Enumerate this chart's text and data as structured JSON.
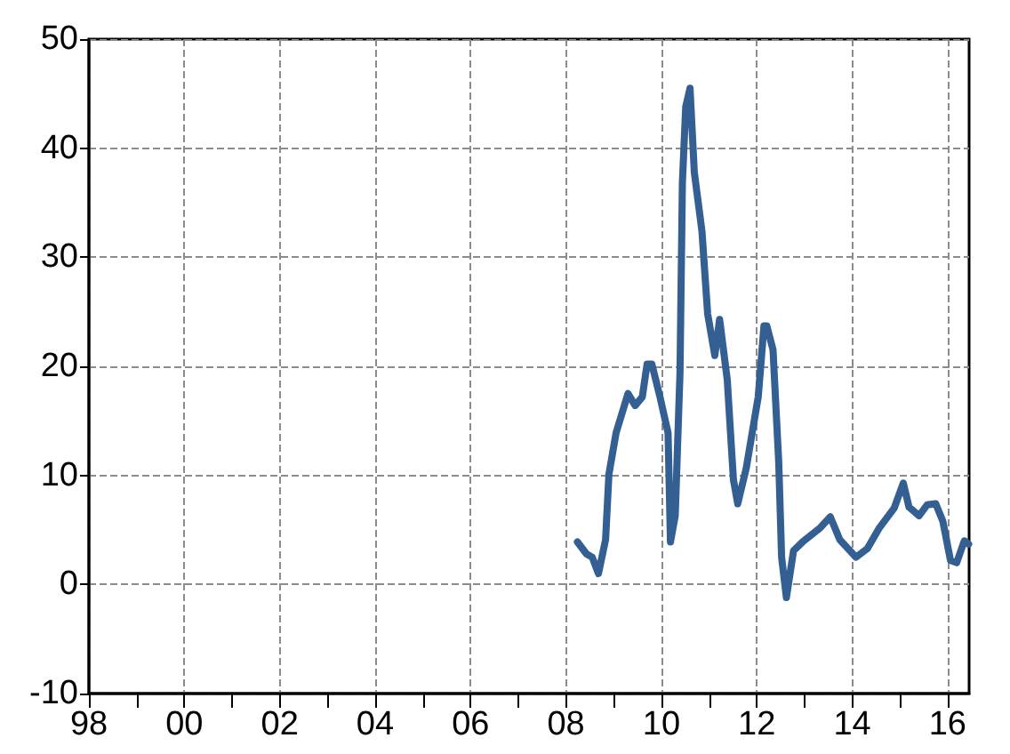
{
  "chart_data": {
    "type": "line",
    "x": [
      2008.24,
      2008.43,
      2008.55,
      2008.68,
      2008.83,
      2008.9,
      2009.05,
      2009.3,
      2009.45,
      2009.6,
      2009.7,
      2009.8,
      2009.97,
      2010.14,
      2010.19,
      2010.29,
      2010.39,
      2010.44,
      2010.51,
      2010.6,
      2010.69,
      2010.85,
      2010.97,
      2011.12,
      2011.22,
      2011.38,
      2011.51,
      2011.6,
      2011.78,
      2012.03,
      2012.15,
      2012.21,
      2012.34,
      2012.46,
      2012.52,
      2012.62,
      2012.77,
      2012.96,
      2013.33,
      2013.54,
      2013.74,
      2014.08,
      2014.32,
      2014.57,
      2014.88,
      2015.07,
      2015.19,
      2015.4,
      2015.57,
      2015.75,
      2015.9,
      2016.06,
      2016.19,
      2016.35,
      2016.44
    ],
    "series": [
      {
        "color": "#335f93",
        "values": [
          3.9,
          2.8,
          2.5,
          1.0,
          4.1,
          10.1,
          13.9,
          17.5,
          16.4,
          17.2,
          20.2,
          20.2,
          17.2,
          13.9,
          3.9,
          6.3,
          19.4,
          36.8,
          43.8,
          45.5,
          37.8,
          32.4,
          24.8,
          21.0,
          24.3,
          18.8,
          9.6,
          7.4,
          10.7,
          17.2,
          23.7,
          23.7,
          21.5,
          11.2,
          2.5,
          -1.2,
          3.1,
          3.9,
          5.2,
          6.2,
          4.1,
          2.5,
          3.3,
          5.2,
          7.0,
          9.3,
          7.1,
          6.3,
          7.3,
          7.4,
          5.8,
          2.2,
          2.0,
          4.0,
          3.7
        ]
      }
    ],
    "xlim": [
      1998,
      2016.45
    ],
    "xticks": [
      {
        "value": 1998,
        "label": "98"
      },
      {
        "value": 1999,
        "label": null
      },
      {
        "value": 2000,
        "label": "00"
      },
      {
        "value": 2001,
        "label": null
      },
      {
        "value": 2002,
        "label": "02"
      },
      {
        "value": 2003,
        "label": null
      },
      {
        "value": 2004,
        "label": "04"
      },
      {
        "value": 2005,
        "label": null
      },
      {
        "value": 2006,
        "label": "06"
      },
      {
        "value": 2007,
        "label": null
      },
      {
        "value": 2008,
        "label": "08"
      },
      {
        "value": 2009,
        "label": null
      },
      {
        "value": 2010,
        "label": "10"
      },
      {
        "value": 2011,
        "label": null
      },
      {
        "value": 2012,
        "label": "12"
      },
      {
        "value": 2013,
        "label": null
      },
      {
        "value": 2014,
        "label": "14"
      },
      {
        "value": 2015,
        "label": null
      },
      {
        "value": 2016,
        "label": "16"
      }
    ],
    "ylim": [
      -10,
      50
    ],
    "yticks": [
      -10,
      0,
      10,
      20,
      30,
      40,
      50
    ],
    "grid": true,
    "line_style": "solid",
    "marker": "none"
  }
}
